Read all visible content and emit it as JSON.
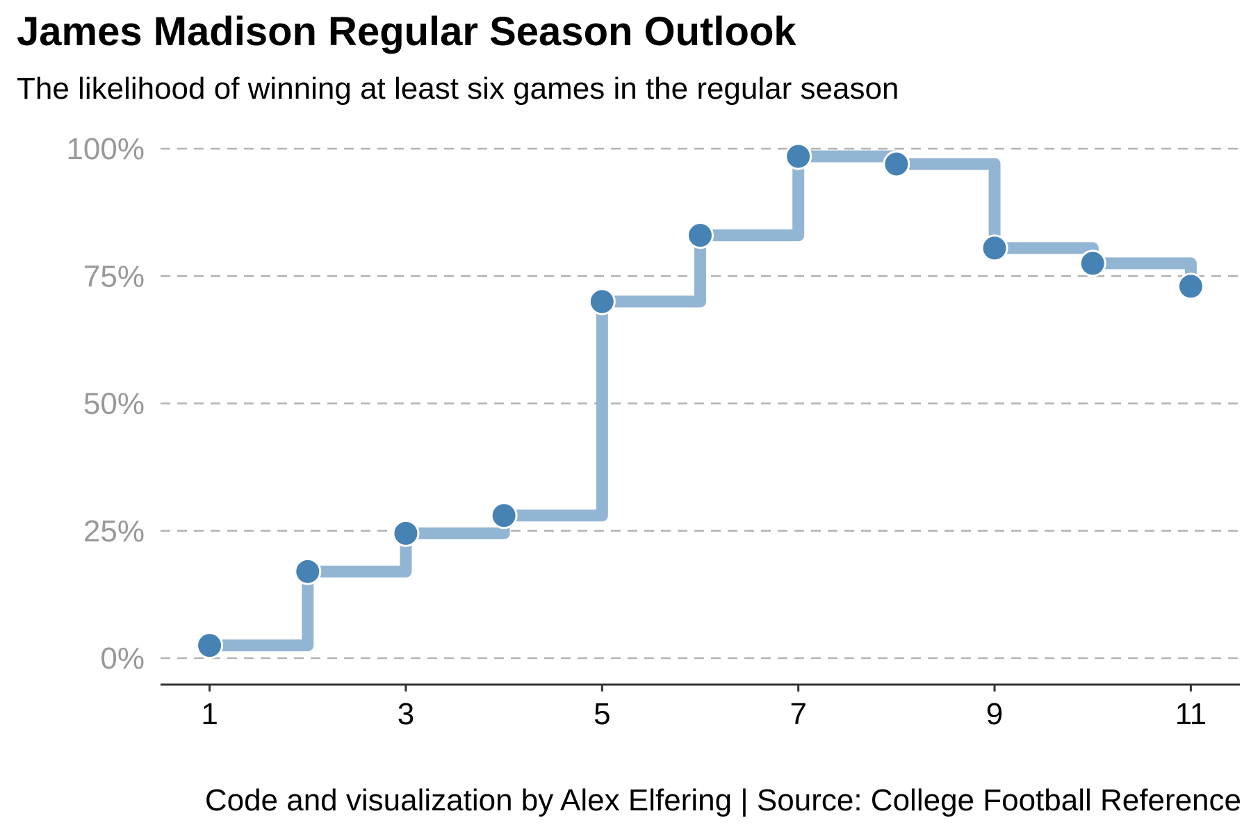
{
  "chart_data": {
    "type": "line",
    "title": "James Madison Regular Season Outlook",
    "subtitle": "The likelihood of winning at least six games in the regular season",
    "caption": "Code and visualization by Alex Elfering | Source: College Football Reference",
    "xlabel": "",
    "ylabel": "",
    "x": [
      1,
      2,
      3,
      4,
      5,
      6,
      7,
      8,
      9,
      10,
      11
    ],
    "series": [
      {
        "values": [
          0.025,
          0.17,
          0.245,
          0.28,
          0.7,
          0.83,
          0.985,
          0.97,
          0.805,
          0.775,
          0.73
        ]
      }
    ],
    "x_ticks": [
      1,
      3,
      5,
      7,
      9,
      11
    ],
    "x_tick_labels": [
      "1",
      "3",
      "5",
      "7",
      "9",
      "11"
    ],
    "y_ticks": [
      0,
      0.25,
      0.5,
      0.75,
      1.0
    ],
    "y_tick_labels": [
      "0%",
      "25%",
      "50%",
      "75%",
      "100%"
    ],
    "xlim": [
      0.5,
      11.5
    ],
    "ylim": [
      -0.05,
      1.02
    ],
    "step_direction": "horizontal-then-vertical",
    "grid": "horizontal dashed",
    "legend": "none",
    "colors": {
      "step_line": "#93b5d4",
      "point": "#4682b4",
      "point_outline": "#ffffff",
      "grid": "#b3b3b3",
      "axis": "#333333",
      "y_tick_text": "#999999",
      "x_tick_text": "#000000"
    }
  }
}
